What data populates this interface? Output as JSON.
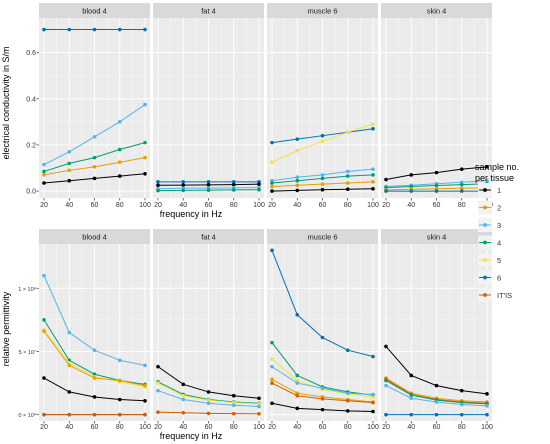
{
  "chart_data": [
    {
      "type": "line",
      "row": "conductivity",
      "ylabel": "electrical conductivity in S/m",
      "xlabel": "frequency in Hz",
      "ylim": [
        -0.03,
        0.75
      ],
      "yticks": [
        0.0,
        0.2,
        0.4,
        0.6
      ],
      "ytick_labels": [
        "0.0",
        "0.2",
        "0.4",
        "0.6"
      ],
      "x": [
        20,
        40,
        60,
        80,
        100
      ],
      "xtick_labels": [
        "20",
        "40",
        "60",
        "80",
        "100"
      ],
      "panels": [
        {
          "strip": "blood 4",
          "series": [
            {
              "name": "1",
              "values": [
                0.035,
                0.045,
                0.055,
                0.065,
                0.075
              ]
            },
            {
              "name": "2",
              "values": [
                0.07,
                0.09,
                0.105,
                0.125,
                0.145
              ]
            },
            {
              "name": "3",
              "values": [
                0.115,
                0.17,
                0.235,
                0.3,
                0.375
              ]
            },
            {
              "name": "4",
              "values": [
                0.085,
                0.12,
                0.145,
                0.18,
                0.21
              ]
            },
            {
              "name": "6",
              "values": [
                0.7,
                0.7,
                0.7,
                0.7,
                0.7
              ]
            }
          ]
        },
        {
          "strip": "fat 4",
          "series": [
            {
              "name": "6",
              "values": [
                0.04,
                0.04,
                0.04,
                0.04,
                0.04
              ]
            },
            {
              "name": "1",
              "values": [
                0.025,
                0.026,
                0.027,
                0.028,
                0.03
              ]
            },
            {
              "name": "3",
              "values": [
                0.01,
                0.012,
                0.013,
                0.014,
                0.015
              ]
            },
            {
              "name": "4",
              "values": [
                0.002,
                0.003,
                0.004,
                0.005,
                0.006
              ]
            }
          ]
        },
        {
          "strip": "muscle 6",
          "series": [
            {
              "name": "6",
              "values": [
                0.21,
                0.225,
                0.24,
                0.255,
                0.27
              ]
            },
            {
              "name": "5",
              "values": [
                0.125,
                0.175,
                0.215,
                0.255,
                0.29
              ]
            },
            {
              "name": "3",
              "values": [
                0.045,
                0.06,
                0.07,
                0.085,
                0.095
              ]
            },
            {
              "name": "4",
              "values": [
                0.035,
                0.045,
                0.055,
                0.065,
                0.07
              ]
            },
            {
              "name": "2",
              "values": [
                0.02,
                0.025,
                0.03,
                0.035,
                0.04
              ]
            },
            {
              "name": "1",
              "values": [
                0.0,
                0.003,
                0.006,
                0.008,
                0.01
              ]
            }
          ]
        },
        {
          "strip": "skin 4",
          "series": [
            {
              "name": "1",
              "values": [
                0.05,
                0.07,
                0.08,
                0.095,
                0.105
              ]
            },
            {
              "name": "3",
              "values": [
                0.02,
                0.025,
                0.032,
                0.038,
                0.045
              ]
            },
            {
              "name": "4",
              "values": [
                0.015,
                0.02,
                0.024,
                0.028,
                0.032
              ]
            },
            {
              "name": "2",
              "values": [
                0.005,
                0.008,
                0.01,
                0.012,
                0.014
              ]
            },
            {
              "name": "6",
              "values": [
                0.0,
                0.0,
                0.0,
                0.0,
                0.0
              ]
            }
          ]
        }
      ]
    },
    {
      "type": "line",
      "row": "permittivity",
      "ylabel": "relative permittivity",
      "xlabel": "frequency in Hz",
      "ylim": [
        -5000000,
        135000000
      ],
      "yticks": [
        0,
        50000000,
        100000000
      ],
      "ytick_labels": [
        "0 × 10⁰",
        "5 × 10⁷",
        "1 × 10⁸"
      ],
      "x": [
        20,
        40,
        60,
        80,
        100
      ],
      "xtick_labels": [
        "20",
        "40",
        "60",
        "80",
        "100"
      ],
      "panels": [
        {
          "strip": "blood 4",
          "series": [
            {
              "name": "3",
              "values": [
                110000000,
                65000000,
                51000000,
                43000000,
                39000000
              ]
            },
            {
              "name": "4",
              "values": [
                75000000,
                43000000,
                32000000,
                27000000,
                24000000
              ]
            },
            {
              "name": "5",
              "values": [
                67000000,
                41000000,
                30000000,
                26000000,
                22000000
              ]
            },
            {
              "name": "2",
              "values": [
                66000000,
                39000000,
                29000000,
                27000000,
                23000000
              ]
            },
            {
              "name": "1",
              "values": [
                29000000,
                18000000,
                14000000,
                12000000,
                11000000
              ]
            },
            {
              "name": "6",
              "values": [
                0,
                0,
                0,
                0,
                0
              ]
            },
            {
              "name": "IT'IS",
              "values": [
                0,
                0,
                0,
                0,
                0
              ]
            }
          ]
        },
        {
          "strip": "fat 4",
          "series": [
            {
              "name": "1",
              "values": [
                38000000,
                24000000,
                18000000,
                15000000,
                13000000
              ]
            },
            {
              "name": "4",
              "values": [
                26000000,
                16000000,
                12000000,
                10000000,
                9000000
              ]
            },
            {
              "name": "5",
              "values": [
                25000000,
                15000000,
                11500000,
                9500000,
                8500000
              ]
            },
            {
              "name": "3",
              "values": [
                19000000,
                12000000,
                9000000,
                7500000,
                6500000
              ]
            },
            {
              "name": "IT'IS",
              "values": [
                2000000,
                1500000,
                1000000,
                800000,
                700000
              ]
            }
          ]
        },
        {
          "strip": "muscle 6",
          "series": [
            {
              "name": "6",
              "values": [
                130000000,
                79000000,
                61000000,
                51000000,
                46000000
              ]
            },
            {
              "name": "4",
              "values": [
                57000000,
                31000000,
                22000000,
                18000000,
                15500000
              ]
            },
            {
              "name": "5",
              "values": [
                44000000,
                27000000,
                20000000,
                16500000,
                14000000
              ]
            },
            {
              "name": "3",
              "values": [
                38000000,
                25000000,
                21000000,
                17000000,
                16000000
              ]
            },
            {
              "name": "2",
              "values": [
                28000000,
                17000000,
                14000000,
                12000000,
                10000000
              ]
            },
            {
              "name": "IT'IS",
              "values": [
                25000000,
                15000000,
                12500000,
                11000000,
                9500000
              ]
            },
            {
              "name": "1",
              "values": [
                9000000,
                5000000,
                4000000,
                3000000,
                2500000
              ]
            }
          ]
        },
        {
          "strip": "skin 4",
          "series": [
            {
              "name": "1",
              "values": [
                54000000,
                31000000,
                23000000,
                19000000,
                16500000
              ]
            },
            {
              "name": "2",
              "values": [
                29000000,
                17000000,
                13000000,
                11000000,
                10000000
              ]
            },
            {
              "name": "IT'IS",
              "values": [
                28000000,
                16000000,
                12000000,
                10000000,
                9000000
              ]
            },
            {
              "name": "4",
              "values": [
                27000000,
                15500000,
                11500000,
                9500000,
                8500000
              ]
            },
            {
              "name": "3",
              "values": [
                23000000,
                13000000,
                10000000,
                8000000,
                7000000
              ]
            },
            {
              "name": "6",
              "values": [
                0,
                0,
                0,
                0,
                0
              ]
            }
          ]
        }
      ]
    }
  ],
  "legend": {
    "title_line1": "sample no.",
    "title_line2": "per tissue",
    "placement": "right",
    "items": [
      {
        "label": "1",
        "color": "#000000"
      },
      {
        "label": "2",
        "color": "#e69f00"
      },
      {
        "label": "3",
        "color": "#56b4e9"
      },
      {
        "label": "4",
        "color": "#009e73"
      },
      {
        "label": "5",
        "color": "#f0e442"
      },
      {
        "label": "6",
        "color": "#0072b2"
      },
      {
        "label": "IT'IS",
        "color": "#d55e00"
      }
    ]
  },
  "panel_style": {
    "background": "#ebebeb",
    "grid_major": "#ffffff",
    "strip_background": "#d9d9d9"
  }
}
